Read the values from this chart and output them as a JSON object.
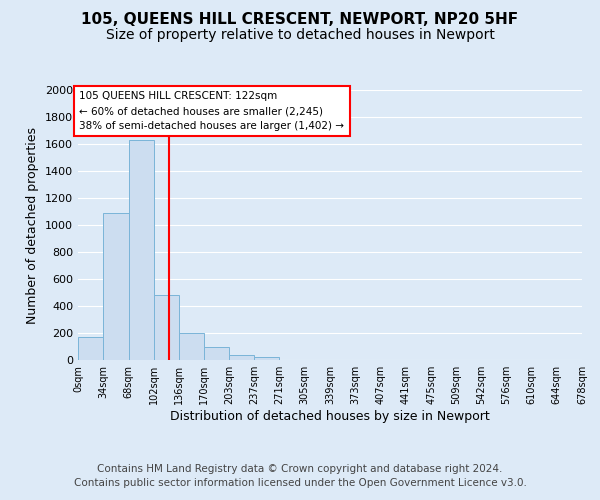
{
  "title": "105, QUEENS HILL CRESCENT, NEWPORT, NP20 5HF",
  "subtitle": "Size of property relative to detached houses in Newport",
  "xlabel": "Distribution of detached houses by size in Newport",
  "ylabel": "Number of detached properties",
  "bar_color": "#ccddf0",
  "bar_edgecolor": "#7ab4d8",
  "bin_edges": [
    0,
    34,
    68,
    102,
    136,
    170,
    203,
    237,
    271,
    305,
    339,
    373,
    407,
    441,
    475,
    509,
    542,
    576,
    610,
    644,
    678
  ],
  "bar_heights": [
    170,
    1090,
    1630,
    480,
    200,
    100,
    40,
    20,
    0,
    0,
    0,
    0,
    0,
    0,
    0,
    0,
    0,
    0,
    0,
    0
  ],
  "vline_x": 122,
  "vline_color": "red",
  "annotation_line1": "105 QUEENS HILL CRESCENT: 122sqm",
  "annotation_line2": "← 60% of detached houses are smaller (2,245)",
  "annotation_line3": "38% of semi-detached houses are larger (1,402) →",
  "annotation_box_color": "white",
  "annotation_box_edgecolor": "red",
  "ylim": [
    0,
    2000
  ],
  "yticks": [
    0,
    200,
    400,
    600,
    800,
    1000,
    1200,
    1400,
    1600,
    1800,
    2000
  ],
  "tick_labels": [
    "0sqm",
    "34sqm",
    "68sqm",
    "102sqm",
    "136sqm",
    "170sqm",
    "203sqm",
    "237sqm",
    "271sqm",
    "305sqm",
    "339sqm",
    "373sqm",
    "407sqm",
    "441sqm",
    "475sqm",
    "509sqm",
    "542sqm",
    "576sqm",
    "610sqm",
    "644sqm",
    "678sqm"
  ],
  "footer_line1": "Contains HM Land Registry data © Crown copyright and database right 2024.",
  "footer_line2": "Contains public sector information licensed under the Open Government Licence v3.0.",
  "bg_color": "#ddeaf7",
  "plot_bg_color": "#ddeaf7",
  "grid_color": "white",
  "title_fontsize": 11,
  "subtitle_fontsize": 10,
  "xlabel_fontsize": 9,
  "ylabel_fontsize": 9,
  "footer_fontsize": 7.5
}
